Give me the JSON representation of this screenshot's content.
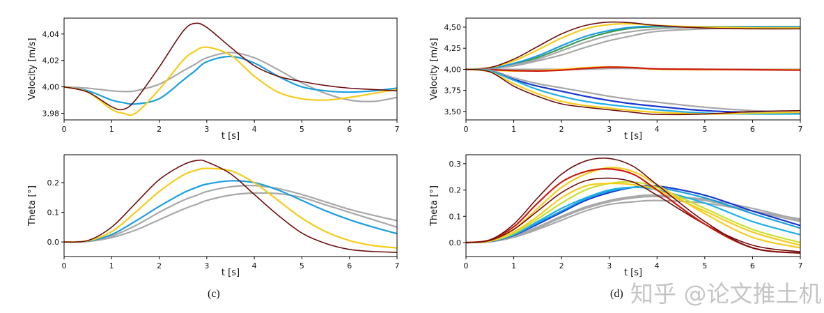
{
  "captions": {
    "c": "(c)",
    "d": "(d)"
  },
  "watermark": "知乎 @论文推土机",
  "colors": {
    "maroon": "#6e0d0d",
    "red": "#cc1a10",
    "yellow": "#f5cc1a",
    "lime": "#c8e030",
    "cyan": "#1fb0e8",
    "blue": "#1a9fe0",
    "darkblue": "#1838d0",
    "gray": "#a8a8a8",
    "green": "#3a9a50"
  },
  "chart_data": [
    {
      "id": "c-velocity",
      "type": "line",
      "xlabel": "t [s]",
      "ylabel": "Velocity [m/s]",
      "xlim": [
        0,
        7
      ],
      "ylim": [
        3.975,
        4.052
      ],
      "xticks": [
        "0",
        "1",
        "2",
        "3",
        "4",
        "5",
        "6",
        "7"
      ],
      "xtick_values": [
        0,
        1,
        2,
        3,
        4,
        5,
        6,
        7
      ],
      "yticks": [
        "3,98",
        "4,00",
        "4,02",
        "4,04"
      ],
      "ytick_values": [
        3.98,
        4.0,
        4.02,
        4.04
      ],
      "x": [
        0,
        0.5,
        1,
        1.25,
        1.5,
        2,
        2.5,
        2.75,
        3,
        3.5,
        4,
        4.5,
        5,
        5.5,
        6,
        6.5,
        7
      ],
      "series": [
        {
          "color": "gray",
          "values": [
            4.0,
            3.999,
            3.997,
            3.9965,
            3.997,
            4.002,
            4.012,
            4.017,
            4.022,
            4.026,
            4.022,
            4.013,
            4.003,
            3.995,
            3.99,
            3.989,
            3.992
          ]
        },
        {
          "color": "blue",
          "values": [
            4.0,
            3.997,
            3.99,
            3.988,
            3.987,
            3.991,
            4.005,
            4.012,
            4.019,
            4.023,
            4.018,
            4.008,
            4.0,
            3.997,
            3.996,
            3.997,
            3.999
          ]
        },
        {
          "color": "yellow",
          "values": [
            4.0,
            3.996,
            3.983,
            3.98,
            3.98,
            3.998,
            4.02,
            4.027,
            4.03,
            4.024,
            4.008,
            3.996,
            3.991,
            3.99,
            3.992,
            3.995,
            3.998
          ]
        },
        {
          "color": "maroon",
          "values": [
            4.0,
            3.996,
            3.985,
            3.983,
            3.99,
            4.015,
            4.042,
            4.048,
            4.045,
            4.03,
            4.016,
            4.008,
            4.004,
            4.001,
            3.999,
            3.998,
            3.997
          ]
        }
      ]
    },
    {
      "id": "c-theta",
      "type": "line",
      "xlabel": "t [s]",
      "ylabel": "Theta [°]",
      "xlim": [
        0,
        7
      ],
      "ylim": [
        -0.049,
        0.294
      ],
      "xticks": [
        "0",
        "1",
        "2",
        "3",
        "4",
        "5",
        "6",
        "7"
      ],
      "xtick_values": [
        0,
        1,
        2,
        3,
        4,
        5,
        6,
        7
      ],
      "yticks": [
        "0.0",
        "0.1",
        "0.2"
      ],
      "ytick_values": [
        0,
        0.1,
        0.2
      ],
      "x": [
        0,
        0.5,
        1,
        1.5,
        2,
        2.5,
        2.8,
        3,
        3.5,
        4,
        4.5,
        5,
        5.5,
        6,
        6.5,
        7
      ],
      "series": [
        {
          "color": "gray",
          "values": [
            0,
            0.002,
            0.015,
            0.04,
            0.075,
            0.11,
            0.128,
            0.14,
            0.158,
            0.165,
            0.163,
            0.15,
            0.125,
            0.1,
            0.075,
            0.05
          ]
        },
        {
          "color": "gray",
          "values": [
            0,
            0.002,
            0.02,
            0.055,
            0.1,
            0.14,
            0.158,
            0.17,
            0.186,
            0.19,
            0.18,
            0.16,
            0.135,
            0.11,
            0.09,
            0.072
          ]
        },
        {
          "color": "blue",
          "values": [
            0,
            0.003,
            0.025,
            0.07,
            0.12,
            0.165,
            0.185,
            0.195,
            0.206,
            0.2,
            0.175,
            0.14,
            0.105,
            0.075,
            0.05,
            0.028
          ]
        },
        {
          "color": "yellow",
          "values": [
            0,
            0.004,
            0.035,
            0.1,
            0.17,
            0.225,
            0.243,
            0.248,
            0.24,
            0.2,
            0.14,
            0.08,
            0.035,
            0.005,
            -0.012,
            -0.02
          ]
        },
        {
          "color": "maroon",
          "values": [
            0,
            0.005,
            0.05,
            0.13,
            0.21,
            0.26,
            0.275,
            0.27,
            0.23,
            0.16,
            0.09,
            0.03,
            -0.005,
            -0.025,
            -0.032,
            -0.035
          ]
        }
      ]
    },
    {
      "id": "d-velocity",
      "type": "line",
      "xlabel": "t [s]",
      "ylabel": "Velocity [m/s]",
      "xlim": [
        0,
        7
      ],
      "ylim": [
        3.4,
        4.607
      ],
      "xticks": [
        "0",
        "1",
        "2",
        "3",
        "4",
        "5",
        "6",
        "7"
      ],
      "xtick_values": [
        0,
        1,
        2,
        3,
        4,
        5,
        6,
        7
      ],
      "yticks": [
        "3,50",
        "3,75",
        "4,00",
        "4,25",
        "4,50"
      ],
      "ytick_values": [
        3.5,
        3.75,
        4.0,
        4.25,
        4.5
      ],
      "x": [
        0,
        0.5,
        1,
        1.5,
        2,
        2.5,
        3,
        3.5,
        4,
        5,
        6,
        7
      ],
      "series": [
        {
          "color": "green",
          "values": [
            4,
            4.01,
            4.06,
            4.14,
            4.25,
            4.36,
            4.44,
            4.49,
            4.505,
            4.505,
            4.505,
            4.505
          ]
        },
        {
          "color": "gray",
          "values": [
            4,
            4.01,
            4.04,
            4.1,
            4.17,
            4.26,
            4.34,
            4.4,
            4.45,
            4.48,
            4.49,
            4.49
          ]
        },
        {
          "color": "gray",
          "values": [
            4,
            4.01,
            4.05,
            4.12,
            4.22,
            4.32,
            4.4,
            4.45,
            4.48,
            4.5,
            4.5,
            4.5
          ]
        },
        {
          "color": "blue",
          "values": [
            4,
            4.01,
            4.07,
            4.16,
            4.28,
            4.39,
            4.46,
            4.5,
            4.51,
            4.5,
            4.5,
            4.5
          ]
        },
        {
          "color": "yellow",
          "values": [
            4,
            4.02,
            4.1,
            4.23,
            4.37,
            4.48,
            4.53,
            4.54,
            4.52,
            4.5,
            4.49,
            4.49
          ]
        },
        {
          "color": "maroon",
          "values": [
            4,
            4.02,
            4.12,
            4.27,
            4.42,
            4.52,
            4.56,
            4.55,
            4.52,
            4.49,
            4.48,
            4.48
          ]
        },
        {
          "color": "gray",
          "values": [
            4,
            4,
            4,
            4,
            4.0,
            4.0,
            4.01,
            4.01,
            4.005,
            4.0,
            4.0,
            4.0
          ]
        },
        {
          "color": "yellow",
          "values": [
            4,
            3.99,
            3.98,
            3.985,
            4.0,
            4.02,
            4.03,
            4.02,
            4.0,
            3.995,
            3.995,
            3.995
          ]
        },
        {
          "color": "red",
          "values": [
            4,
            3.995,
            3.985,
            3.98,
            3.99,
            4.01,
            4.025,
            4.02,
            4.005,
            4.0,
            3.995,
            3.99
          ]
        },
        {
          "color": "gray",
          "values": [
            4,
            3.99,
            3.9,
            3.83,
            3.78,
            3.73,
            3.68,
            3.64,
            3.61,
            3.55,
            3.51,
            3.49
          ]
        },
        {
          "color": "darkblue",
          "values": [
            4,
            3.98,
            3.88,
            3.8,
            3.74,
            3.68,
            3.63,
            3.59,
            3.56,
            3.51,
            3.49,
            3.48
          ]
        },
        {
          "color": "cyan",
          "values": [
            4,
            3.98,
            3.87,
            3.76,
            3.68,
            3.62,
            3.58,
            3.55,
            3.52,
            3.48,
            3.47,
            3.47
          ]
        },
        {
          "color": "yellow",
          "values": [
            4,
            3.97,
            3.83,
            3.71,
            3.62,
            3.57,
            3.54,
            3.51,
            3.49,
            3.47,
            3.48,
            3.49
          ]
        },
        {
          "color": "maroon",
          "values": [
            4,
            3.97,
            3.8,
            3.68,
            3.59,
            3.55,
            3.52,
            3.49,
            3.465,
            3.47,
            3.5,
            3.51
          ]
        }
      ]
    },
    {
      "id": "d-theta",
      "type": "line",
      "xlabel": "t [s]",
      "ylabel": "Theta [°]",
      "xlim": [
        0,
        7
      ],
      "ylim": [
        -0.053,
        0.334
      ],
      "xticks": [
        "0",
        "1",
        "2",
        "3",
        "4",
        "5",
        "6",
        "7"
      ],
      "xtick_values": [
        0,
        1,
        2,
        3,
        4,
        5,
        6,
        7
      ],
      "yticks": [
        "0.0",
        "0.1",
        "0.2",
        "0.3"
      ],
      "ytick_values": [
        0,
        0.1,
        0.2,
        0.3
      ],
      "x": [
        0,
        0.5,
        1,
        1.5,
        2,
        2.5,
        3,
        3.5,
        4,
        5,
        6,
        7
      ],
      "series": [
        {
          "color": "gray",
          "values": [
            0,
            0.003,
            0.02,
            0.05,
            0.085,
            0.12,
            0.145,
            0.155,
            0.16,
            0.15,
            0.12,
            0.09
          ]
        },
        {
          "color": "gray",
          "values": [
            0,
            0.004,
            0.023,
            0.055,
            0.095,
            0.13,
            0.155,
            0.17,
            0.175,
            0.165,
            0.13,
            0.085
          ]
        },
        {
          "color": "gray",
          "values": [
            0,
            0.004,
            0.025,
            0.06,
            0.1,
            0.135,
            0.16,
            0.175,
            0.18,
            0.16,
            0.12,
            0.08
          ]
        },
        {
          "color": "darkblue",
          "values": [
            0,
            0.004,
            0.028,
            0.07,
            0.115,
            0.16,
            0.19,
            0.21,
            0.215,
            0.18,
            0.12,
            0.065
          ]
        },
        {
          "color": "blue",
          "values": [
            0,
            0.005,
            0.03,
            0.075,
            0.12,
            0.165,
            0.195,
            0.21,
            0.21,
            0.17,
            0.11,
            0.055
          ]
        },
        {
          "color": "cyan",
          "values": [
            0,
            0.005,
            0.03,
            0.08,
            0.13,
            0.17,
            0.2,
            0.21,
            0.2,
            0.15,
            0.08,
            0.03
          ]
        },
        {
          "color": "lime",
          "values": [
            0,
            0.005,
            0.035,
            0.09,
            0.15,
            0.2,
            0.225,
            0.23,
            0.21,
            0.13,
            0.05,
            0.0
          ]
        },
        {
          "color": "yellow",
          "values": [
            0,
            0.006,
            0.04,
            0.1,
            0.17,
            0.215,
            0.225,
            0.22,
            0.2,
            0.12,
            0.04,
            -0.01
          ]
        },
        {
          "color": "yellow",
          "values": [
            0,
            0.007,
            0.05,
            0.13,
            0.21,
            0.26,
            0.285,
            0.27,
            0.22,
            0.11,
            0.02,
            -0.02
          ]
        },
        {
          "color": "maroon",
          "values": [
            0,
            0.008,
            0.05,
            0.12,
            0.19,
            0.235,
            0.245,
            0.23,
            0.18,
            0.07,
            -0.01,
            -0.035
          ]
        },
        {
          "color": "red",
          "values": [
            0,
            0.01,
            0.06,
            0.15,
            0.23,
            0.27,
            0.28,
            0.26,
            0.2,
            0.07,
            -0.02,
            -0.04
          ]
        },
        {
          "color": "maroon",
          "values": [
            0,
            0.01,
            0.07,
            0.17,
            0.26,
            0.31,
            0.32,
            0.29,
            0.22,
            0.08,
            -0.02,
            -0.04
          ]
        }
      ]
    }
  ]
}
